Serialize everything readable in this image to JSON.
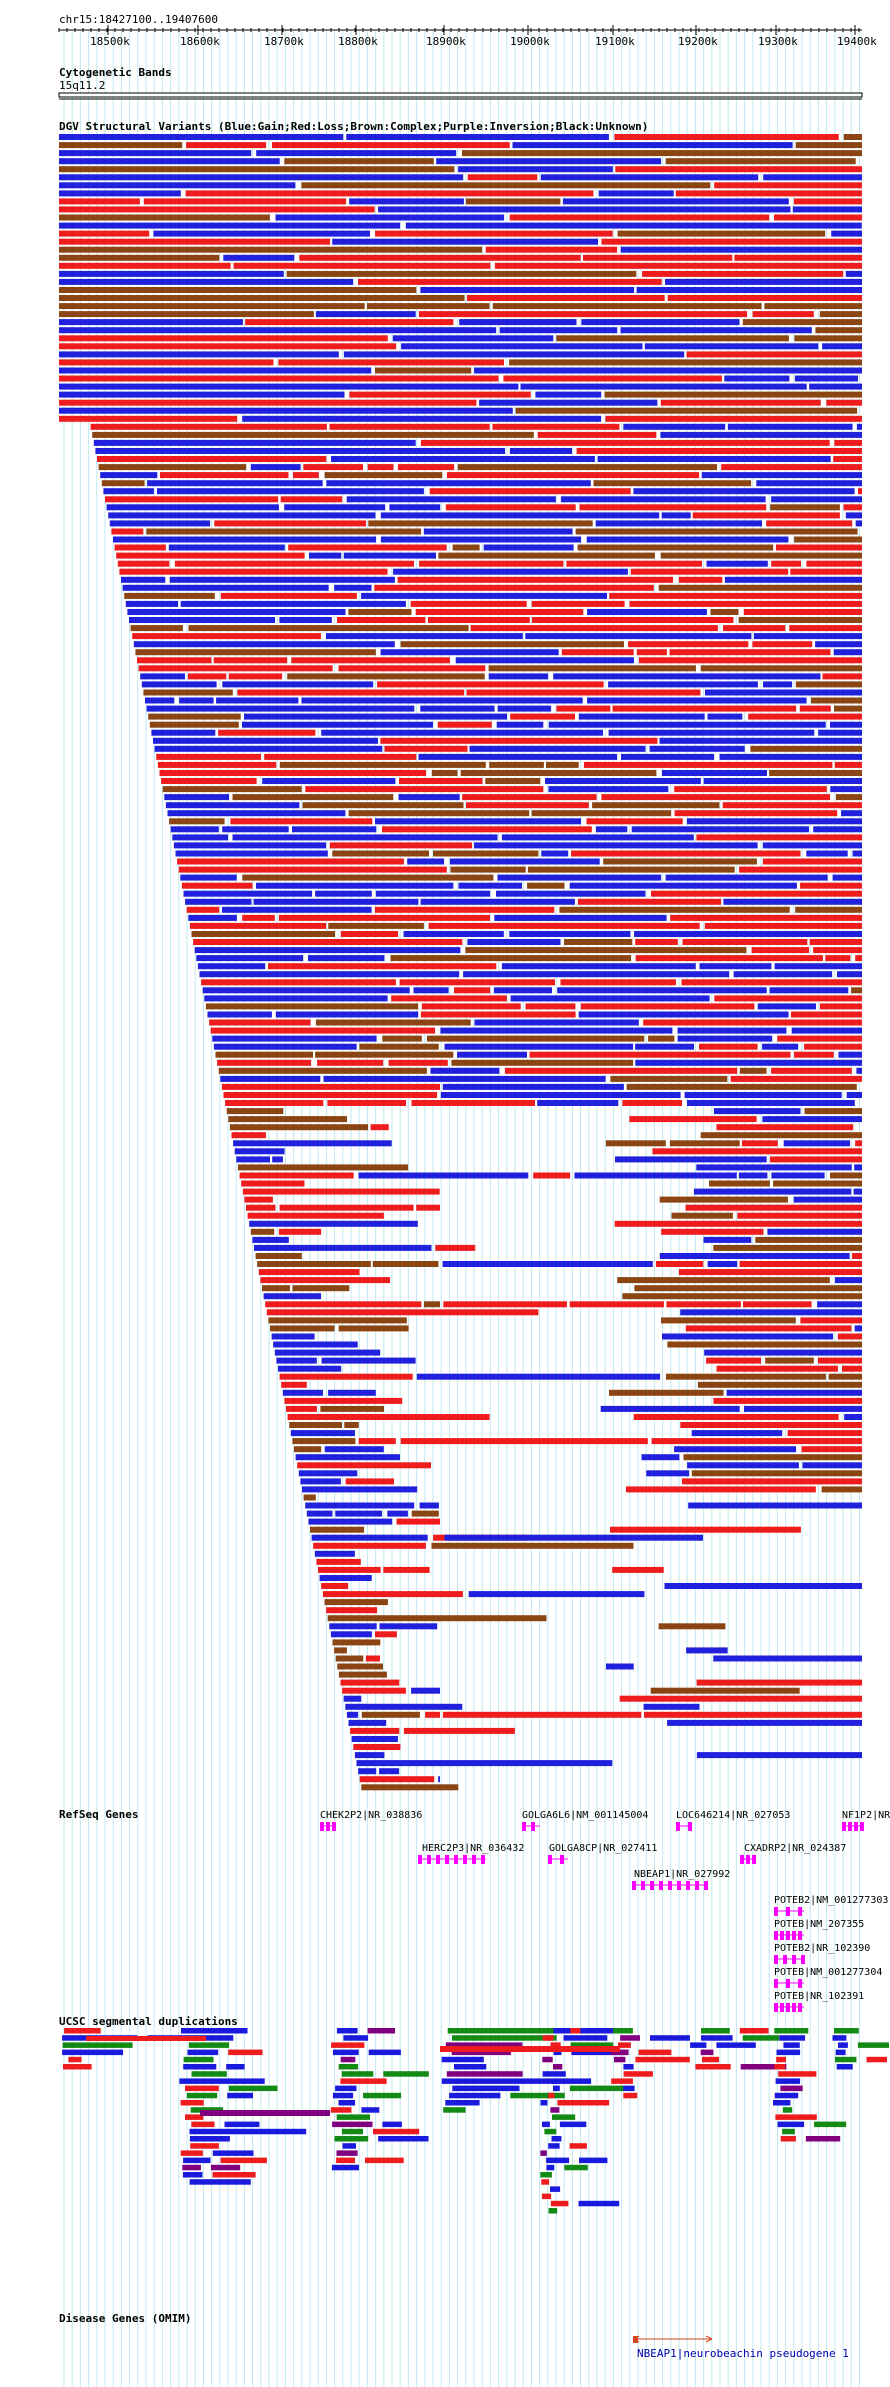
{
  "ruler": {
    "coord": "chr15:18427100..19407600",
    "ticks": [
      "18500k",
      "18600k",
      "18700k",
      "18800k",
      "18900k",
      "19000k",
      "19100k",
      "19200k",
      "19300k",
      "19400k"
    ]
  },
  "cyto": {
    "title": "Cytogenetic Bands",
    "band": "15q11.2"
  },
  "dgv": {
    "title": "DGV Structural Variants (Blue:Gain;Red:Loss;Brown:Complex;Purple:Inversion;Black:Unknown)",
    "colors": {
      "gain": "#2020dd",
      "loss": "#ee1c1c",
      "complex": "#8b4513",
      "inversion": "#800080",
      "unknown": "#000000"
    }
  },
  "refseq": {
    "title": "RefSeq Genes",
    "genes": [
      {
        "label": "CHEK2P2|NR_038836"
      },
      {
        "label": "GOLGA6L6|NM_001145004"
      },
      {
        "label": "LOC646214|NR_027053"
      },
      {
        "label": "NF1P2|NR"
      },
      {
        "label": "HERC2P3|NR_036432"
      },
      {
        "label": "GOLGA8CP|NR_027411"
      },
      {
        "label": "CXADRP2|NR_024387"
      },
      {
        "label": "NBEAP1|NR_027992"
      },
      {
        "label": "POTEB2|NM_001277303"
      },
      {
        "label": "POTEB|NM_207355"
      },
      {
        "label": "POTEB2|NR_102390"
      },
      {
        "label": "POTEB|NM_001277304"
      },
      {
        "label": "POTEB|NR_102391"
      }
    ],
    "color": "#ff00ff"
  },
  "segdup": {
    "title": "UCSC segmental duplications",
    "colors": {
      "blue": "#1a1add",
      "purple": "#800080",
      "green": "#138a13",
      "red": "#ee1c1c"
    }
  },
  "omim": {
    "title": "Disease Genes (OMIM)",
    "gene": "NBEAP1|neurobeachin pseudogene 1",
    "color": "#0000aa"
  },
  "colors": {
    "grid": "#bfe8f2",
    "text": "#000000"
  }
}
